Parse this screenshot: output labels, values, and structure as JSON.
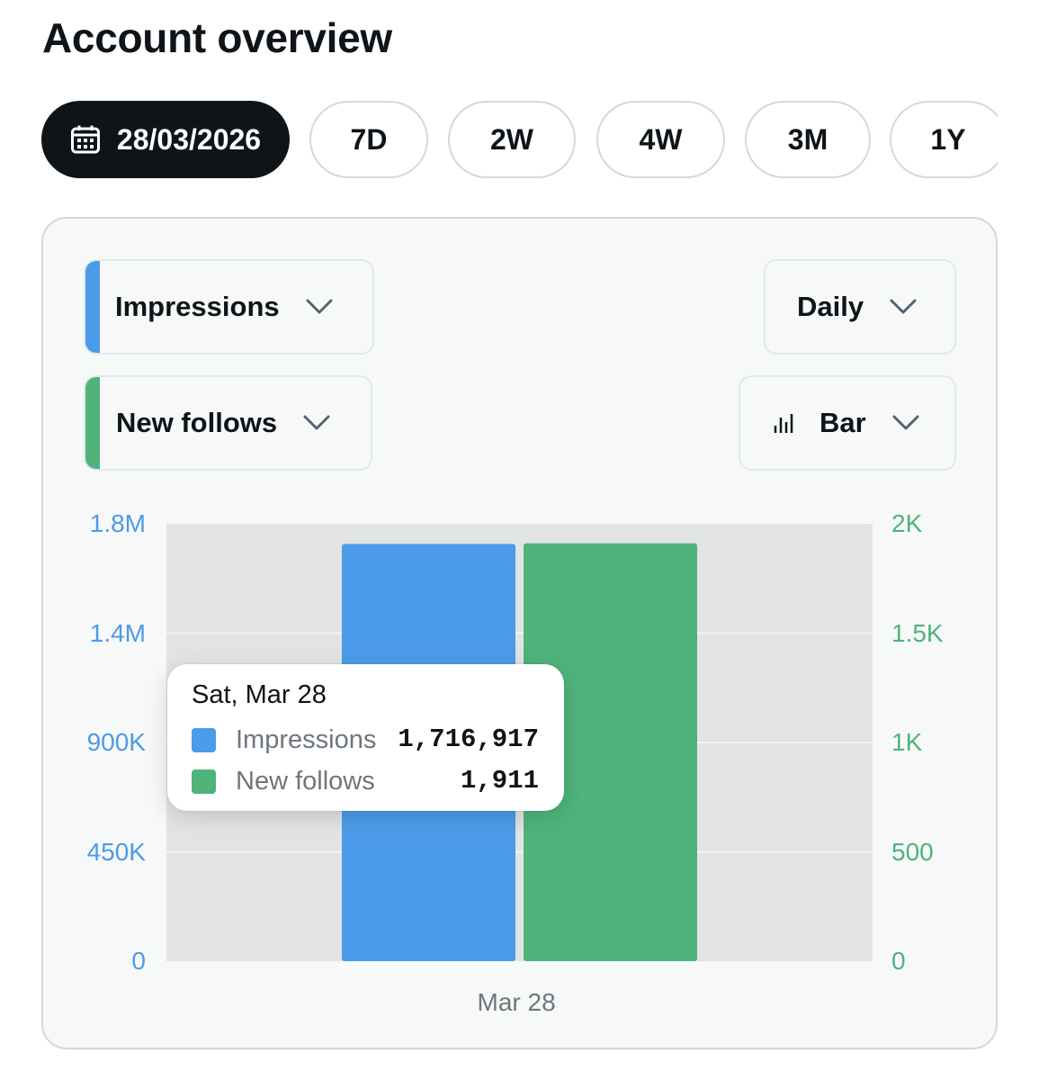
{
  "header": {
    "title": "Account overview"
  },
  "date_range": {
    "selected_date": "28/03/2026",
    "ranges": [
      "7D",
      "2W",
      "4W",
      "3M",
      "1Y"
    ]
  },
  "controls": {
    "metric_primary": {
      "label": "Impressions",
      "color": "#4c9be8"
    },
    "metric_secondary": {
      "label": "New follows",
      "color": "#4fb37b"
    },
    "interval": {
      "label": "Daily"
    },
    "chart_type": {
      "label": "Bar"
    }
  },
  "chart_data": {
    "type": "bar",
    "categories": [
      "Mar 28"
    ],
    "series": [
      {
        "name": "Impressions",
        "values": [
          1716917
        ],
        "axis": "left",
        "color": "#4c9be8"
      },
      {
        "name": "New follows",
        "values": [
          1911
        ],
        "axis": "right",
        "color": "#4fb37b"
      }
    ],
    "y_left": {
      "ticks": [
        "1.8M",
        "1.4M",
        "900K",
        "450K",
        "0"
      ],
      "ylim": [
        0,
        1800000
      ]
    },
    "y_right": {
      "ticks": [
        "2K",
        "1.5K",
        "1K",
        "500",
        "0"
      ],
      "ylim": [
        0,
        2000
      ]
    },
    "grid": true
  },
  "tooltip": {
    "date": "Sat, Mar 28",
    "rows": [
      {
        "name": "Impressions",
        "value": "1,716,917",
        "color": "#4c9be8"
      },
      {
        "name": "New follows",
        "value": "1,911",
        "color": "#4fb37b"
      }
    ]
  }
}
